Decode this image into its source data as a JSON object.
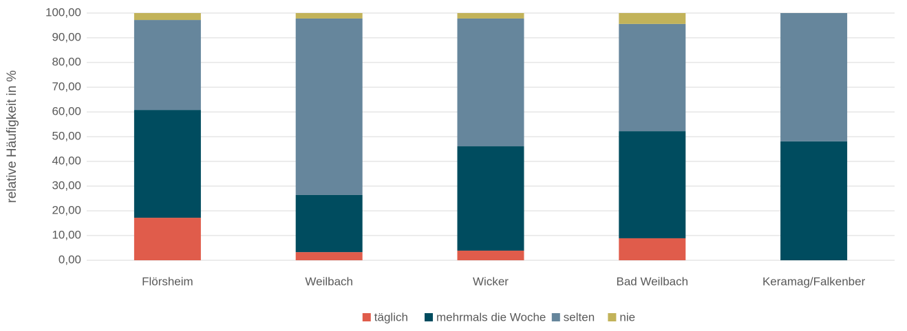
{
  "chart_data": {
    "type": "stacked_bar",
    "y_label": "relative Häufigkeit in %",
    "categories": [
      "Flörsheim",
      "Weilbach",
      "Wicker",
      "Bad Weilbach",
      "Keramag/Falkenber"
    ],
    "series": [
      {
        "name": "täglich",
        "color": "#e05c4b",
        "values": [
          17.2,
          3.3,
          3.9,
          8.9,
          0
        ]
      },
      {
        "name": "mehrmals die Woche",
        "color": "#004c5f",
        "values": [
          43.6,
          23.1,
          42.2,
          43.3,
          48.1
        ]
      },
      {
        "name": "selten",
        "color": "#66869c",
        "values": [
          36.4,
          71.4,
          51.7,
          43.4,
          51.9
        ]
      },
      {
        "name": "nie",
        "color": "#c2b35a",
        "values": [
          2.8,
          2.2,
          2.2,
          4.4,
          0
        ]
      }
    ],
    "ylim": [
      0,
      100
    ],
    "yticks": [
      {
        "value": 0,
        "label": "0,00"
      },
      {
        "value": 10,
        "label": "10,00"
      },
      {
        "value": 20,
        "label": "20,00"
      },
      {
        "value": 30,
        "label": "30,00"
      },
      {
        "value": 40,
        "label": "40,00"
      },
      {
        "value": 50,
        "label": "50,00"
      },
      {
        "value": 60,
        "label": "60,00"
      },
      {
        "value": 70,
        "label": "70,00"
      },
      {
        "value": 80,
        "label": "80,00"
      },
      {
        "value": 90,
        "label": "90,00"
      },
      {
        "value": 100,
        "label": "100,00"
      }
    ],
    "grid": true,
    "legend": "bottom"
  }
}
